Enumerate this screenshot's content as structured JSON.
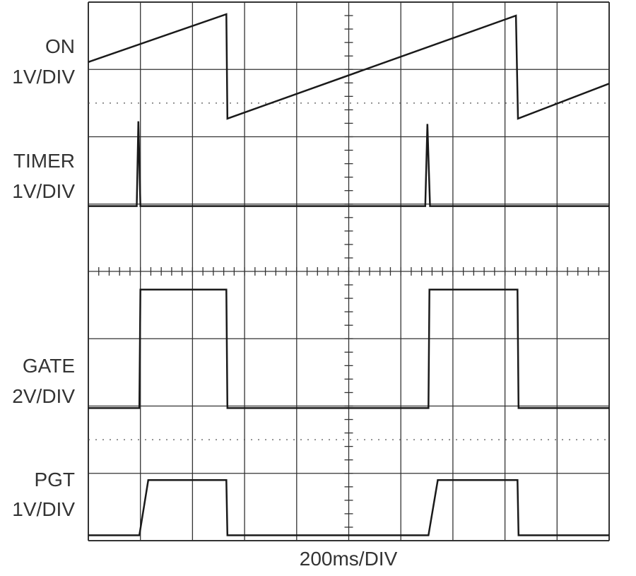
{
  "chart_data": {
    "type": "scope",
    "xlabel": "200ms/DIV",
    "xlim": [
      0,
      10
    ],
    "ylim": [
      0,
      8
    ],
    "color": "#1a1a1a",
    "series": [
      {
        "name": "ON",
        "scale": "1V/DIV",
        "x": [
          0,
          2.65,
          2.67,
          8.21,
          8.25,
          10
        ],
        "values": [
          7.11,
          7.82,
          6.27,
          7.8,
          6.27,
          6.79
        ]
      },
      {
        "name": "TIMER",
        "scale": "1V/DIV",
        "x": [
          0,
          0.93,
          0.96,
          1.0,
          6.47,
          6.51,
          6.56,
          10
        ],
        "values": [
          4.97,
          4.97,
          6.23,
          4.97,
          4.97,
          6.19,
          4.97,
          4.97
        ]
      },
      {
        "name": "GATE",
        "scale": "2V/DIV",
        "x": [
          0,
          0.98,
          1.0,
          2.65,
          2.67,
          6.53,
          6.55,
          8.24,
          8.26,
          10
        ],
        "values": [
          1.97,
          1.97,
          3.73,
          3.73,
          1.97,
          1.97,
          3.73,
          3.73,
          1.97,
          1.97
        ]
      },
      {
        "name": "PGT",
        "scale": "1V/DIV",
        "x": [
          0,
          0.98,
          1.15,
          2.65,
          2.67,
          6.53,
          6.71,
          8.24,
          8.26,
          10
        ],
        "values": [
          0.08,
          0.08,
          0.9,
          0.9,
          0.08,
          0.08,
          0.9,
          0.9,
          0.08,
          0.08
        ]
      }
    ]
  }
}
